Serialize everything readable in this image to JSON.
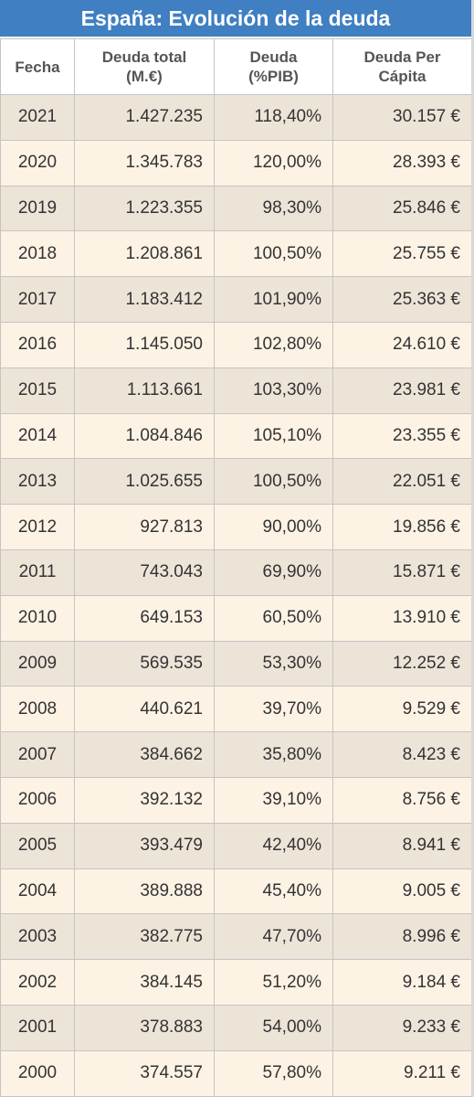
{
  "header": {
    "title": "España: Evolución de la deuda"
  },
  "table": {
    "columns": [
      "Fecha",
      "Deuda total (M.€)",
      "Deuda (%PIB)",
      "Deuda Per Cápita"
    ],
    "rows": [
      [
        "2021",
        "1.427.235",
        "118,40%",
        "30.157 €"
      ],
      [
        "2020",
        "1.345.783",
        "120,00%",
        "28.393 €"
      ],
      [
        "2019",
        "1.223.355",
        "98,30%",
        "25.846 €"
      ],
      [
        "2018",
        "1.208.861",
        "100,50%",
        "25.755 €"
      ],
      [
        "2017",
        "1.183.412",
        "101,90%",
        "25.363 €"
      ],
      [
        "2016",
        "1.145.050",
        "102,80%",
        "24.610 €"
      ],
      [
        "2015",
        "1.113.661",
        "103,30%",
        "23.981 €"
      ],
      [
        "2014",
        "1.084.846",
        "105,10%",
        "23.355 €"
      ],
      [
        "2013",
        "1.025.655",
        "100,50%",
        "22.051 €"
      ],
      [
        "2012",
        "927.813",
        "90,00%",
        "19.856 €"
      ],
      [
        "2011",
        "743.043",
        "69,90%",
        "15.871 €"
      ],
      [
        "2010",
        "649.153",
        "60,50%",
        "13.910 €"
      ],
      [
        "2009",
        "569.535",
        "53,30%",
        "12.252 €"
      ],
      [
        "2008",
        "440.621",
        "39,70%",
        "9.529 €"
      ],
      [
        "2007",
        "384.662",
        "35,80%",
        "8.423 €"
      ],
      [
        "2006",
        "392.132",
        "39,10%",
        "8.756 €"
      ],
      [
        "2005",
        "393.479",
        "42,40%",
        "8.941 €"
      ],
      [
        "2004",
        "389.888",
        "45,40%",
        "9.005 €"
      ],
      [
        "2003",
        "382.775",
        "47,70%",
        "8.996 €"
      ],
      [
        "2002",
        "384.145",
        "51,20%",
        "9.184 €"
      ],
      [
        "2001",
        "378.883",
        "54,00%",
        "9.233 €"
      ],
      [
        "2000",
        "374.557",
        "57,80%",
        "9.211 €"
      ]
    ]
  }
}
